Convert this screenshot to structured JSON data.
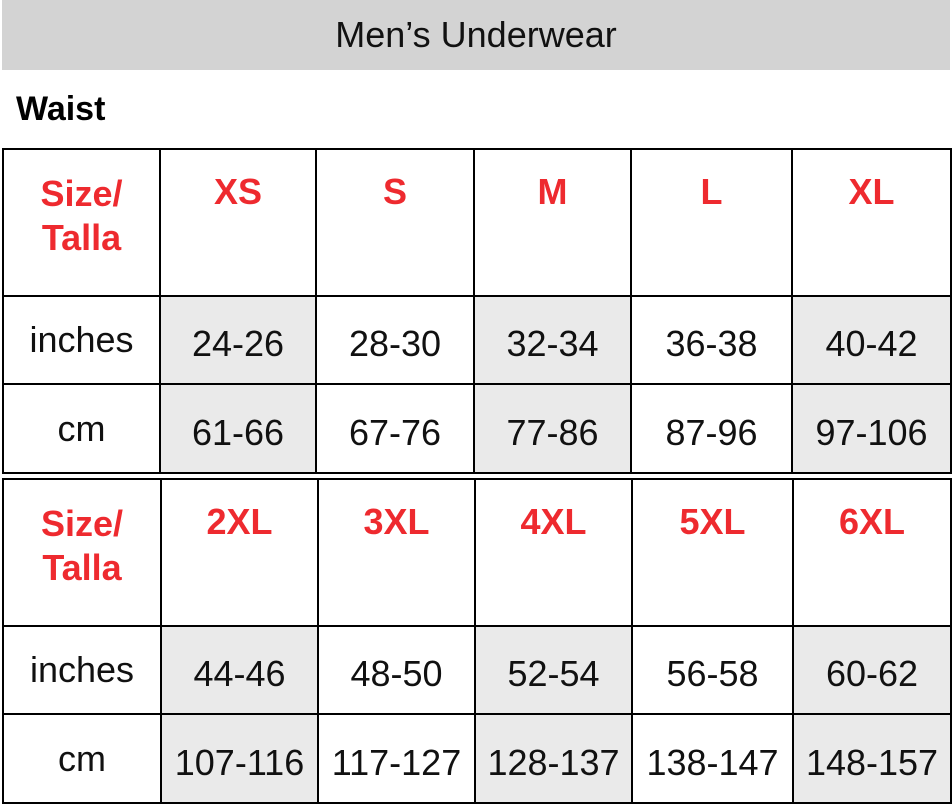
{
  "title": "Men’s Underwear",
  "section": "Waist",
  "colors": {
    "accent_red": "#ee2a2f",
    "title_bar": "#d3d3d3",
    "shade": "#eaeaea"
  },
  "tables": [
    {
      "header_label": [
        "Size/",
        "Talla"
      ],
      "sizes": [
        "XS",
        "S",
        "M",
        "L",
        "XL"
      ],
      "rows": [
        {
          "label": "inches",
          "values": [
            "24-26",
            "28-30",
            "32-34",
            "36-38",
            "40-42"
          ]
        },
        {
          "label": "cm",
          "values": [
            "61-66",
            "67-76",
            "77-86",
            "87-96",
            "97-106"
          ]
        }
      ]
    },
    {
      "header_label": [
        "Size/",
        "Talla"
      ],
      "sizes": [
        "2XL",
        "3XL",
        "4XL",
        "5XL",
        "6XL"
      ],
      "rows": [
        {
          "label": "inches",
          "values": [
            "44-46",
            "48-50",
            "52-54",
            "56-58",
            "60-62"
          ]
        },
        {
          "label": "cm",
          "values": [
            "107-116",
            "117-127",
            "128-137",
            "138-147",
            "148-157"
          ]
        }
      ]
    }
  ]
}
